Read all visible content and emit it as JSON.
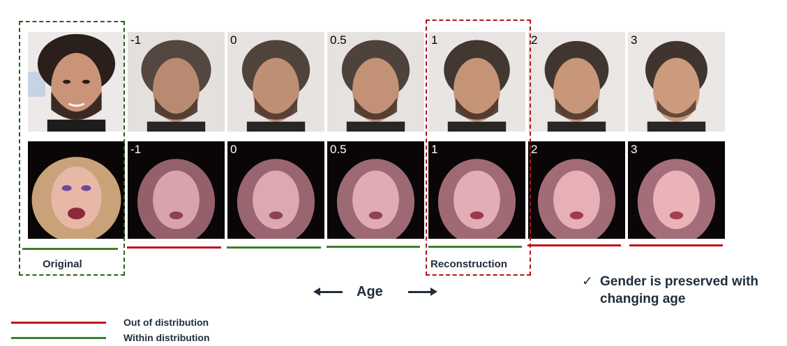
{
  "colors": {
    "out_of_distribution": "#c0121b",
    "within_distribution": "#3d7f2a",
    "original_box": "#2f5e1e",
    "reconstruction_box": "#b3121c",
    "text_dark": "#1f2d3d"
  },
  "rows": [
    {
      "id": "male",
      "cells": [
        {
          "coef": "",
          "kind": "original"
        },
        {
          "coef": "-1",
          "kind": "generated"
        },
        {
          "coef": "0",
          "kind": "generated"
        },
        {
          "coef": "0.5",
          "kind": "generated"
        },
        {
          "coef": "1",
          "kind": "generated"
        },
        {
          "coef": "2",
          "kind": "generated"
        },
        {
          "coef": "3",
          "kind": "generated"
        }
      ]
    },
    {
      "id": "female",
      "cells": [
        {
          "coef": "",
          "kind": "original"
        },
        {
          "coef": "-1",
          "kind": "generated"
        },
        {
          "coef": "0",
          "kind": "generated"
        },
        {
          "coef": "0.5",
          "kind": "generated"
        },
        {
          "coef": "1",
          "kind": "generated"
        },
        {
          "coef": "2",
          "kind": "generated"
        },
        {
          "coef": "3",
          "kind": "generated"
        }
      ]
    }
  ],
  "distribution_status": [
    "within",
    "out",
    "within",
    "within",
    "within",
    "out",
    "out"
  ],
  "labels": {
    "original": "Original",
    "reconstruction": "Reconstruction",
    "axis": "Age",
    "note_check": "✓",
    "note": "Gender is preserved with changing age"
  },
  "legend": [
    {
      "label": "Out of distribution",
      "status": "out"
    },
    {
      "label": "Within distribution",
      "status": "within"
    }
  ]
}
